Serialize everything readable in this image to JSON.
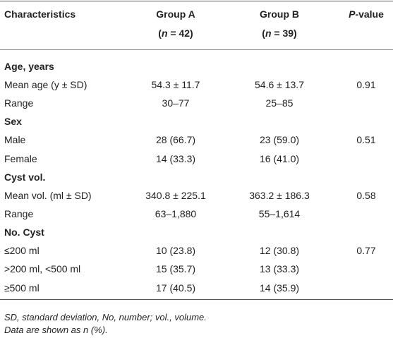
{
  "header": {
    "characteristics": "Characteristics",
    "group_a": {
      "name": "Group A",
      "n": [
        "(",
        "n",
        " = 42)"
      ]
    },
    "group_b": {
      "name": "Group B",
      "n": [
        "(",
        "n",
        " = 39)"
      ]
    },
    "p_value": [
      "P",
      "-value"
    ]
  },
  "sections": [
    {
      "title": "Age, years",
      "rows": [
        [
          "Mean age (y ± SD)",
          "54.3 ± 11.7",
          "54.6 ± 13.7",
          "0.91"
        ],
        [
          "Range",
          "30–77",
          "25–85"
        ]
      ]
    },
    {
      "title": "Sex",
      "rows": [
        [
          "Male",
          "28 (66.7)",
          "23 (59.0)",
          "0.51"
        ],
        [
          "Female",
          "14 (33.3)",
          "16 (41.0)"
        ]
      ]
    },
    {
      "title": "Cyst vol.",
      "rows": [
        [
          "Mean vol. (ml ± SD)",
          "340.8 ± 225.1",
          "363.2 ± 186.3",
          "0.58"
        ],
        [
          "Range",
          "63–1,880",
          "55–1,614"
        ]
      ]
    },
    {
      "title": "No. Cyst",
      "rows": [
        [
          "≤200 ml",
          "10 (23.8)",
          "12 (30.8)",
          "0.77"
        ],
        [
          ">200 ml, <500 ml",
          "15 (35.7)",
          "13 (33.3)"
        ],
        [
          "≥500 ml",
          "17 (40.5)",
          "14 (35.9)"
        ]
      ]
    }
  ],
  "footnotes": [
    "SD, standard deviation, No, number; vol., volume.",
    "Data are shown as n (%)."
  ]
}
